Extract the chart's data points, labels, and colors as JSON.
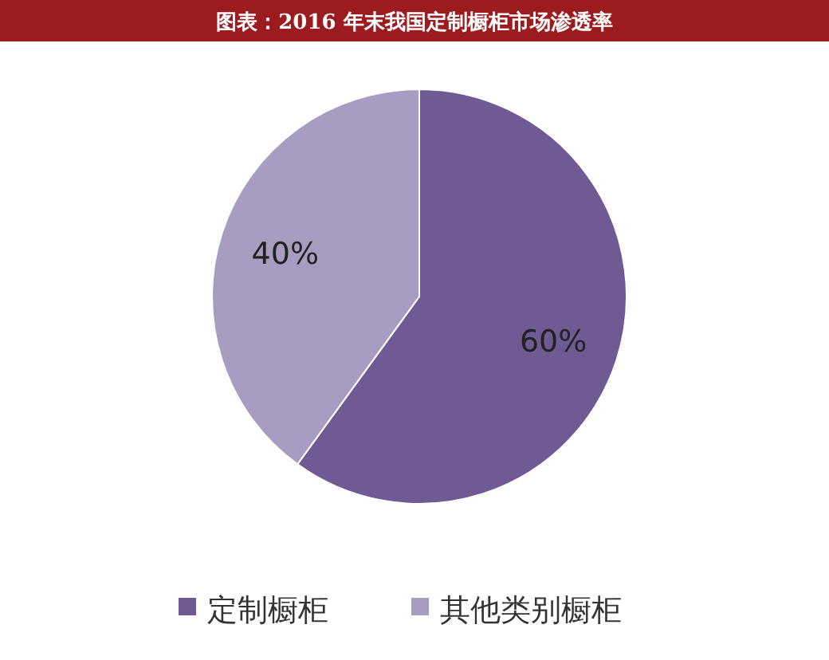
{
  "chart_data": {
    "type": "pie",
    "title": "图表：2016 年末我国定制橱柜市场渗透率",
    "categories": [
      "定制橱柜",
      "其他类别橱柜"
    ],
    "values": [
      60,
      40
    ],
    "colors": [
      "#705a93",
      "#a99cc1"
    ],
    "value_labels": [
      "60%",
      "40%"
    ],
    "legend": "bottom"
  }
}
